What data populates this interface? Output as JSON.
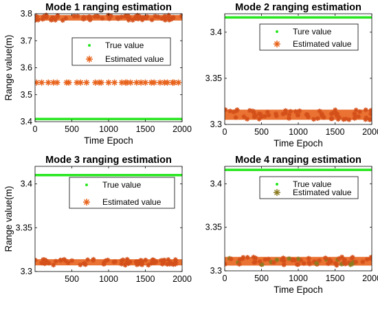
{
  "colors": {
    "true_marker": "#27e61e",
    "est_marker": "#e8631c",
    "axis": "#000000"
  },
  "chart_data": [
    {
      "type": "scatter",
      "title": "Mode 1 ranging estimation",
      "xlabel": "Time Epoch",
      "ylabel": "Range value(m)",
      "xlim": [
        0,
        2000
      ],
      "ylim": [
        3.4,
        3.8
      ],
      "xticks": [
        0,
        500,
        1000,
        1500,
        2000
      ],
      "xtick_labels": [
        "0",
        "500",
        "1000",
        "1500",
        "2000"
      ],
      "yticks": [
        3.4,
        3.5,
        3.6,
        3.7,
        3.8
      ],
      "ytick_labels": [
        "3.4",
        "3.5",
        "3.6",
        "3.7",
        "3.8"
      ],
      "grid": false,
      "legend_position": "upper-right",
      "series": [
        {
          "name": "True value",
          "kind": "line",
          "y": 3.41,
          "x_range": [
            0,
            2000
          ]
        },
        {
          "name": "Estimated value",
          "kind": "band",
          "y": 3.785,
          "x_range": [
            0,
            2000
          ]
        },
        {
          "kind": "scatter",
          "y": 3.545,
          "x": [
            20,
            90,
            180,
            250,
            300,
            430,
            460,
            570,
            620,
            700,
            820,
            870,
            900,
            1000,
            1080,
            1180,
            1230,
            1250,
            1300,
            1380,
            1440,
            1500,
            1580,
            1620,
            1700,
            1760,
            1800,
            1870,
            1890,
            1950
          ]
        }
      ]
    },
    {
      "type": "scatter",
      "title": "Mode 2 ranging estimation",
      "xlabel": "Time Epoch",
      "ylabel": "",
      "xlim": [
        0,
        2000
      ],
      "ylim": [
        3.3,
        3.42
      ],
      "xticks": [
        0,
        500,
        1000,
        1500,
        2000
      ],
      "xtick_labels": [
        "0",
        "500",
        "1000",
        "1500",
        "2000"
      ],
      "yticks": [
        3.3,
        3.35,
        3.4
      ],
      "ytick_labels": [
        "3.3",
        "3.35",
        "3.4"
      ],
      "grid": false,
      "legend_position": "upper-right",
      "series": [
        {
          "name": "Ture value",
          "kind": "line",
          "y": 3.416,
          "x_range": [
            0,
            2000
          ]
        },
        {
          "name": "Estimated value",
          "kind": "band",
          "y_range": [
            3.305,
            3.316
          ],
          "x_range": [
            0,
            2000
          ]
        }
      ]
    },
    {
      "type": "scatter",
      "title": "Mode 3 ranging estimation",
      "xlabel": "",
      "ylabel": "Range value(m)",
      "xlim": [
        0,
        2000
      ],
      "ylim": [
        3.3,
        3.42
      ],
      "xticks": [
        500,
        1000,
        1500,
        2000
      ],
      "xtick_labels": [
        "500",
        "1000",
        "1500",
        "2000"
      ],
      "yticks": [
        3.3,
        3.35,
        3.4
      ],
      "ytick_labels": [
        "3.3",
        "3.35",
        "3.4"
      ],
      "grid": false,
      "legend_position": "upper-right",
      "series": [
        {
          "name": "True value",
          "kind": "line",
          "y": 3.41,
          "x_range": [
            0,
            2000
          ]
        },
        {
          "name": "Estimated value",
          "kind": "band",
          "y_range": [
            3.307,
            3.314
          ],
          "x_range": [
            0,
            2000
          ]
        }
      ]
    },
    {
      "type": "scatter",
      "title": "Mode 4 ranging estimation",
      "xlabel": "Time Epoch",
      "ylabel": "",
      "xlim": [
        0,
        2000
      ],
      "ylim": [
        3.3,
        3.42
      ],
      "xticks": [
        0,
        500,
        1000,
        1500,
        2000
      ],
      "xtick_labels": [
        "0",
        "500",
        "1000",
        "1500",
        "2000"
      ],
      "yticks": [
        3.3,
        3.35,
        3.4
      ],
      "ytick_labels": [
        "3.3",
        "3.35",
        "3.4"
      ],
      "grid": false,
      "legend_position": "upper-right",
      "series": [
        {
          "name": "True value",
          "kind": "line",
          "y": 3.416,
          "x_range": [
            0,
            2000
          ]
        },
        {
          "name": "Estimated value",
          "kind": "band",
          "y_range": [
            3.306,
            3.316
          ],
          "x_range": [
            0,
            2000
          ]
        }
      ]
    }
  ]
}
